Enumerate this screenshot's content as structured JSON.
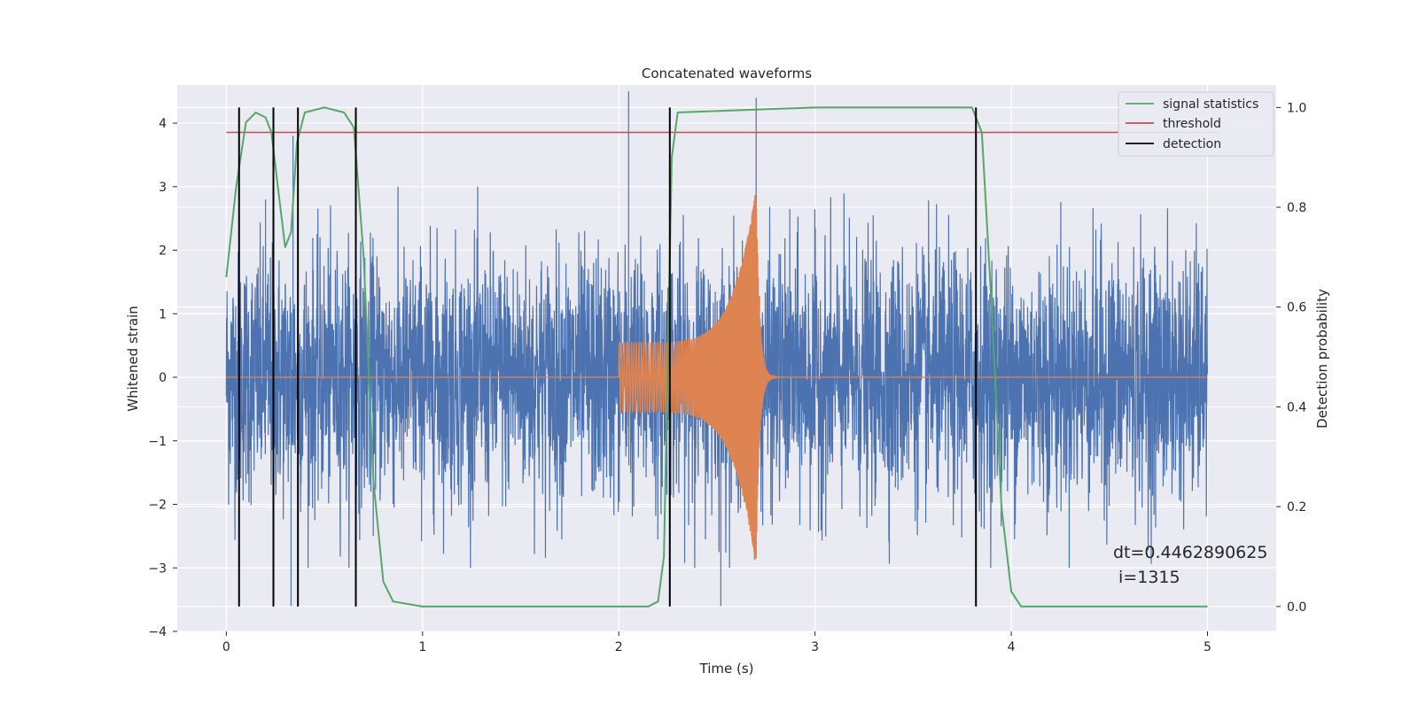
{
  "chart_data": {
    "type": "line",
    "title": "Concatenated waveforms",
    "xlabel": "Time (s)",
    "ylabel": "Whitened strain",
    "y2label": "Detection probability",
    "xlim": [
      -0.25,
      5.35
    ],
    "ylim": [
      -4.0,
      4.6
    ],
    "y2lim": [
      -0.05,
      1.045
    ],
    "xticks": [
      "0",
      "1",
      "2",
      "3",
      "4",
      "5"
    ],
    "yticks": [
      "−4",
      "−3",
      "−2",
      "−1",
      "0",
      "1",
      "2",
      "3",
      "4"
    ],
    "y2ticks": [
      "0.0",
      "0.2",
      "0.4",
      "0.6",
      "0.8",
      "1.0"
    ],
    "grid": true,
    "legend_position": "top-right",
    "legend": [
      {
        "label": "signal statistics",
        "color": "#55a868"
      },
      {
        "label": "threshold",
        "color": "#c44e52"
      },
      {
        "label": "detection",
        "color": "#000000"
      }
    ],
    "series": [
      {
        "name": "whitened strain",
        "color": "#4c72b0",
        "axis": "left",
        "x_range": [
          0,
          5
        ],
        "amplitude_envelope": {
          "typical": 1.3,
          "peaks": [
            [
              0.2,
              2.8
            ],
            [
              0.33,
              -3.6
            ],
            [
              0.34,
              3.8
            ],
            [
              2.05,
              4.5
            ],
            [
              2.52,
              -3.6
            ],
            [
              2.7,
              4.4
            ]
          ]
        }
      },
      {
        "name": "injected waveform",
        "color": "#dd8452",
        "axis": "left",
        "zero_from": [
          0,
          2.0
        ],
        "chirp": {
          "t_start": 2.0,
          "t_merger": 2.7,
          "amp_start": 0.55,
          "amp_peak": 3.0,
          "ringdown_end": 3.0
        },
        "zero_to": [
          3.0,
          5.0
        ]
      },
      {
        "name": "signal statistics",
        "color": "#55a868",
        "axis": "right",
        "x": [
          0.0,
          0.05,
          0.1,
          0.15,
          0.2,
          0.23,
          0.26,
          0.3,
          0.33,
          0.36,
          0.4,
          0.5,
          0.6,
          0.65,
          0.7,
          0.75,
          0.8,
          0.85,
          1.0,
          1.5,
          2.0,
          2.15,
          2.2,
          2.23,
          2.27,
          2.3,
          3.0,
          3.5,
          3.8,
          3.85,
          3.9,
          3.95,
          4.0,
          4.05,
          4.5,
          5.0
        ],
        "y": [
          0.66,
          0.84,
          0.97,
          0.99,
          0.98,
          0.95,
          0.85,
          0.72,
          0.75,
          0.93,
          0.99,
          1.0,
          0.99,
          0.96,
          0.7,
          0.25,
          0.05,
          0.01,
          0.0,
          0.0,
          0.0,
          0.0,
          0.01,
          0.1,
          0.9,
          0.99,
          1.0,
          1.0,
          1.0,
          0.95,
          0.6,
          0.2,
          0.03,
          0.0,
          0.0,
          0.0
        ]
      },
      {
        "name": "threshold",
        "color": "#c44e52",
        "axis": "right",
        "x": [
          0,
          5.05
        ],
        "y": [
          0.95,
          0.95
        ]
      }
    ],
    "detections": {
      "color": "#000000",
      "x": [
        0.065,
        0.24,
        0.365,
        0.66,
        2.26,
        3.82
      ],
      "ymin": 0.0,
      "ymax": 1.0
    },
    "annotation": [
      "dt=0.4462890625",
      " i=1315"
    ]
  }
}
